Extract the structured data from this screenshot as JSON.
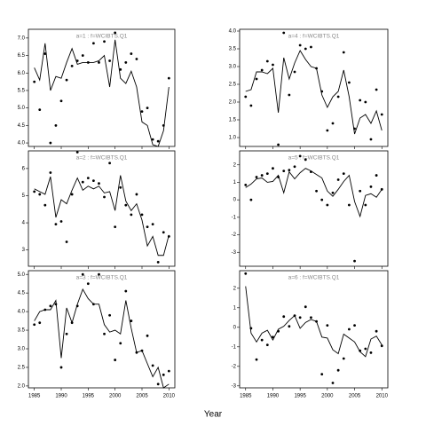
{
  "xlabel": "Year",
  "chart_data": [
    {
      "type": "line",
      "title": "a=1 : f=WCIBTS.Q1",
      "x": [
        1985,
        1986,
        1987,
        1988,
        1989,
        1990,
        1991,
        1992,
        1993,
        1994,
        1995,
        1996,
        1997,
        1998,
        1999,
        2000,
        2001,
        2002,
        2003,
        2004,
        2005,
        2006,
        2007,
        2008,
        2009,
        2010
      ],
      "xlim": [
        1983.9,
        2011.1
      ],
      "xticks": [
        1985,
        1990,
        1995,
        2000,
        2005,
        2010
      ],
      "ylim": [
        3.9,
        7.25
      ],
      "yticks": [
        {
          "value": 4,
          "label": "4.0"
        },
        4.5,
        {
          "value": 5,
          "label": "5.0"
        },
        5.5,
        {
          "value": 6,
          "label": "6.0"
        },
        6.5,
        {
          "value": 7,
          "label": "7.0"
        }
      ],
      "color": "#000000",
      "series": [
        {
          "style": "points",
          "values": [
            5.75,
            4.95,
            6.55,
            4.0,
            4.5,
            5.2,
            5.8,
            6.2,
            6.35,
            6.5,
            6.3,
            6.85,
            6.3,
            6.9,
            6.35,
            7.15,
            6.1,
            6.3,
            6.55,
            6.4,
            4.9,
            5.0,
            4.1,
            4.05,
            4.5,
            5.85
          ]
        },
        {
          "style": "line",
          "values": [
            6.15,
            5.8,
            6.85,
            5.5,
            5.9,
            5.85,
            6.3,
            6.7,
            6.25,
            6.3,
            6.3,
            6.3,
            6.35,
            6.5,
            5.6,
            6.95,
            5.85,
            5.7,
            6.05,
            5.6,
            4.6,
            4.5,
            3.95,
            3.9,
            4.35,
            5.6
          ]
        }
      ]
    },
    {
      "type": "line",
      "title": "a=2 : f=WCIBTS.Q1",
      "x": [
        1985,
        1986,
        1987,
        1988,
        1989,
        1990,
        1991,
        1992,
        1993,
        1994,
        1995,
        1996,
        1997,
        1998,
        1999,
        2000,
        2001,
        2002,
        2003,
        2004,
        2005,
        2006,
        2007,
        2008,
        2009,
        2010
      ],
      "xlim": [
        1983.9,
        2011.1
      ],
      "xticks": [
        1985,
        1990,
        1995,
        2000,
        2005,
        2010
      ],
      "ylim": [
        2.4,
        6.65
      ],
      "yticks": [
        3,
        4,
        5,
        6
      ],
      "color": "#000000",
      "series": [
        {
          "style": "points",
          "values": [
            5.15,
            5.05,
            4.65,
            5.85,
            3.95,
            4.05,
            3.3,
            5.05,
            6.6,
            5.5,
            5.65,
            5.55,
            5.45,
            4.95,
            6.2,
            3.85,
            5.3,
            4.65,
            4.3,
            5.05,
            4.3,
            3.85,
            3.95,
            2.55,
            3.65,
            3.5
          ]
        },
        {
          "style": "line",
          "values": [
            5.25,
            5.15,
            5.05,
            5.7,
            4.2,
            4.85,
            4.7,
            5.2,
            5.65,
            5.2,
            5.35,
            5.25,
            5.35,
            5.1,
            5.15,
            4.45,
            5.75,
            4.8,
            4.45,
            4.7,
            4.1,
            3.15,
            3.5,
            2.8,
            2.8,
            3.55
          ]
        }
      ]
    },
    {
      "type": "line",
      "title": "a=3 : f=WCIBTS.Q1",
      "x": [
        1985,
        1986,
        1987,
        1988,
        1989,
        1990,
        1991,
        1992,
        1993,
        1994,
        1995,
        1996,
        1997,
        1998,
        1999,
        2000,
        2001,
        2002,
        2003,
        2004,
        2005,
        2006,
        2007,
        2008,
        2009,
        2010
      ],
      "xlim": [
        1983.9,
        2011.1
      ],
      "xticks": [
        1985,
        1990,
        1995,
        2000,
        2005,
        2010
      ],
      "ylim": [
        1.95,
        5.1
      ],
      "yticks": [
        {
          "value": 2,
          "label": "2.0"
        },
        2.5,
        {
          "value": 3,
          "label": "3.0"
        },
        3.5,
        {
          "value": 4,
          "label": "4.0"
        },
        4.5,
        {
          "value": 5,
          "label": "5.0"
        }
      ],
      "color": "#000000",
      "series": [
        {
          "style": "points",
          "values": [
            3.65,
            3.7,
            4.05,
            4.15,
            4.2,
            2.5,
            3.4,
            3.7,
            4.15,
            5.0,
            4.75,
            4.2,
            5.0,
            3.4,
            3.9,
            2.7,
            3.15,
            4.55,
            3.75,
            2.9,
            2.95,
            3.35,
            2.55,
            2.05,
            2.3,
            2.4
          ]
        },
        {
          "style": "line",
          "values": [
            3.75,
            4.0,
            4.05,
            4.05,
            4.3,
            2.75,
            4.1,
            3.7,
            4.2,
            4.6,
            4.35,
            4.2,
            4.2,
            3.65,
            3.45,
            3.5,
            3.4,
            4.3,
            3.55,
            2.9,
            2.95,
            2.6,
            2.25,
            2.5,
            1.95,
            2.05
          ]
        }
      ]
    },
    {
      "type": "line",
      "title": "a=4 : f=WCIBTS.Q1",
      "x": [
        1985,
        1986,
        1987,
        1988,
        1989,
        1990,
        1991,
        1992,
        1993,
        1994,
        1995,
        1996,
        1997,
        1998,
        1999,
        2000,
        2001,
        2002,
        2003,
        2004,
        2005,
        2006,
        2007,
        2008,
        2009,
        2010
      ],
      "xlim": [
        1983.9,
        2011.1
      ],
      "xticks": [
        1985,
        1990,
        1995,
        2000,
        2005,
        2010
      ],
      "ylim": [
        0.75,
        4.05
      ],
      "yticks": [
        {
          "value": 1,
          "label": "1.0"
        },
        1.5,
        {
          "value": 2,
          "label": "2.0"
        },
        2.5,
        {
          "value": 3,
          "label": "3.0"
        },
        3.5,
        {
          "value": 4,
          "label": "4.0"
        }
      ],
      "color": "#000000",
      "series": [
        {
          "style": "points",
          "values": [
            2.15,
            1.9,
            2.65,
            2.9,
            3.15,
            3.05,
            0.8,
            3.95,
            2.2,
            2.85,
            3.6,
            3.5,
            3.55,
            2.95,
            2.3,
            1.2,
            1.4,
            2.15,
            3.4,
            2.55,
            1.25,
            2.05,
            2.0,
            0.95,
            2.35,
            1.65
          ]
        },
        {
          "style": "line",
          "values": [
            2.3,
            2.35,
            2.85,
            2.85,
            2.8,
            2.95,
            1.7,
            3.25,
            2.65,
            3.1,
            3.45,
            3.2,
            3.0,
            2.95,
            2.2,
            1.85,
            2.15,
            2.3,
            2.9,
            2.15,
            1.1,
            1.55,
            1.65,
            1.4,
            1.75,
            1.2
          ]
        }
      ]
    },
    {
      "type": "line",
      "title": "a=5 : f=WCIBTS.Q1",
      "x": [
        1985,
        1986,
        1987,
        1988,
        1989,
        1990,
        1991,
        1992,
        1993,
        1994,
        1995,
        1996,
        1997,
        1998,
        1999,
        2000,
        2001,
        2002,
        2003,
        2004,
        2005,
        2006,
        2007,
        2008,
        2009,
        2010
      ],
      "xlim": [
        1983.9,
        2011.1
      ],
      "xticks": [
        1985,
        1990,
        1995,
        2000,
        2005,
        2010
      ],
      "ylim": [
        -3.8,
        2.8
      ],
      "yticks": [
        -3,
        -2,
        -1,
        0,
        1,
        2
      ],
      "color": "#000000",
      "series": [
        {
          "style": "points",
          "values": [
            0.85,
            0.0,
            1.3,
            1.4,
            1.5,
            1.8,
            1.3,
            1.65,
            1.7,
            1.9,
            2.5,
            2.3,
            1.6,
            0.5,
            0.0,
            -0.3,
            0.4,
            1.15,
            1.5,
            -0.3,
            -3.5,
            0.5,
            -0.3,
            0.75,
            1.4,
            0.6
          ]
        },
        {
          "style": "line",
          "values": [
            0.7,
            0.9,
            1.2,
            1.25,
            1.0,
            1.05,
            1.4,
            0.4,
            1.6,
            1.2,
            1.55,
            1.8,
            1.65,
            1.45,
            1.25,
            0.5,
            0.2,
            0.6,
            1.05,
            1.4,
            -0.1,
            -0.95,
            0.25,
            0.35,
            0.15,
            0.6
          ]
        }
      ]
    },
    {
      "type": "line",
      "title": "a=6 : f=WCIBTS.Q1",
      "x": [
        1985,
        1986,
        1987,
        1988,
        1989,
        1990,
        1991,
        1992,
        1993,
        1994,
        1995,
        1996,
        1997,
        1998,
        1999,
        2000,
        2001,
        2002,
        2003,
        2004,
        2005,
        2006,
        2007,
        2008,
        2009,
        2010
      ],
      "xlim": [
        1983.9,
        2011.1
      ],
      "xticks": [
        1985,
        1990,
        1995,
        2000,
        2005,
        2010
      ],
      "ylim": [
        -3.1,
        2.9
      ],
      "yticks": [
        -3,
        -2,
        -1,
        0,
        1,
        2
      ],
      "color": "#000000",
      "series": [
        {
          "style": "points",
          "values": [
            2.75,
            -0.05,
            -1.65,
            -0.65,
            -0.9,
            -0.5,
            -0.2,
            0.55,
            0.05,
            0.6,
            0.5,
            1.05,
            0.5,
            0.3,
            -2.4,
            0.1,
            -2.85,
            -2.2,
            -1.6,
            -0.1,
            0.1,
            -1.2,
            -1.1,
            -1.3,
            -0.2,
            -0.95
          ]
        },
        {
          "style": "line",
          "values": [
            2.1,
            -0.3,
            -0.75,
            -0.3,
            -0.15,
            -0.65,
            -0.1,
            0.05,
            0.35,
            0.6,
            -0.05,
            0.25,
            0.4,
            0.3,
            -0.5,
            -0.55,
            -1.15,
            -1.35,
            -0.35,
            -0.55,
            -0.75,
            -1.25,
            -1.5,
            -0.6,
            -0.45,
            -0.9
          ]
        }
      ]
    }
  ]
}
